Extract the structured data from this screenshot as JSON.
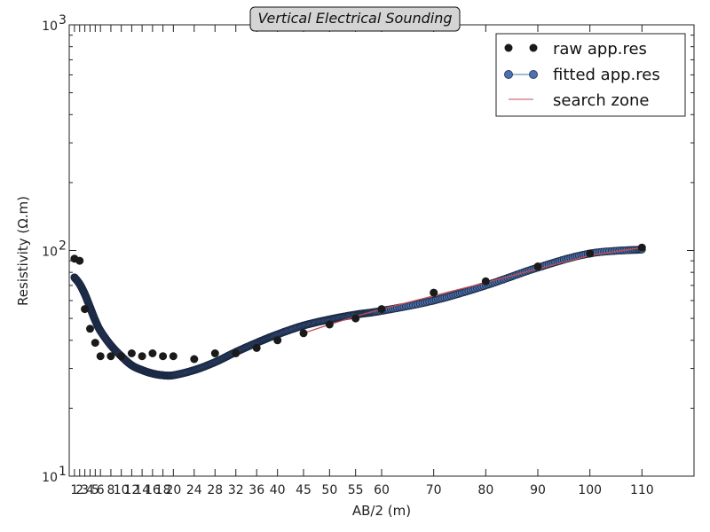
{
  "chart_data": {
    "type": "line",
    "title": "Vertical Electrical Sounding",
    "xlabel": "AB/2 (m)",
    "ylabel": "Resistivity (Ω.m)",
    "xlim": [
      0,
      120
    ],
    "ylim": [
      10,
      1000
    ],
    "yscale": "log",
    "grid": false,
    "legend_position": "top-right",
    "x_ticks": [
      1,
      2,
      3,
      4,
      5,
      6,
      8,
      10,
      12,
      14,
      16,
      18,
      20,
      24,
      28,
      32,
      36,
      40,
      45,
      50,
      55,
      60,
      70,
      80,
      90,
      100,
      110
    ],
    "y_ticks": [
      {
        "value": 10,
        "label": "10"
      },
      {
        "value": 100,
        "label": "10"
      },
      {
        "value": 1000,
        "label": "10"
      }
    ],
    "y_tick_exponents": [
      "1",
      "2",
      "3"
    ],
    "series": [
      {
        "name": "raw app.res",
        "style": "markers",
        "color": "#1a1a1a",
        "x": [
          1,
          2,
          3,
          4,
          5,
          6,
          8,
          10,
          12,
          14,
          16,
          18,
          20,
          24,
          28,
          32,
          36,
          40,
          45,
          50,
          55,
          60,
          70,
          80,
          90,
          100,
          110
        ],
        "y": [
          92,
          90,
          55,
          45,
          39,
          34,
          34,
          34,
          35,
          34,
          35,
          34,
          34,
          33,
          35,
          35,
          37,
          40,
          43,
          47,
          50,
          55,
          65,
          73,
          85,
          97,
          103
        ]
      },
      {
        "name": "fitted app.res",
        "style": "line-markers",
        "color": "#4c72b0",
        "line_color": "#9fb0d4",
        "x": [
          1,
          2,
          3,
          4,
          5,
          6,
          8,
          10,
          12,
          14,
          16,
          18,
          20,
          24,
          28,
          32,
          36,
          40,
          45,
          50,
          55,
          60,
          70,
          80,
          90,
          100,
          110
        ],
        "y": [
          76,
          71,
          64,
          56,
          49,
          44,
          38,
          34,
          31,
          29.5,
          28.5,
          28,
          28,
          29.5,
          32,
          35.5,
          39,
          42.5,
          46.5,
          49.5,
          52,
          54,
          60,
          70,
          84,
          97,
          101
        ]
      },
      {
        "name": "search zone",
        "style": "line",
        "color": "#c44e52",
        "x": [
          45,
          50,
          55,
          60,
          70,
          80,
          90,
          100,
          110
        ],
        "y": [
          43,
          47,
          51,
          55,
          63,
          72,
          83,
          95,
          103
        ]
      }
    ]
  }
}
